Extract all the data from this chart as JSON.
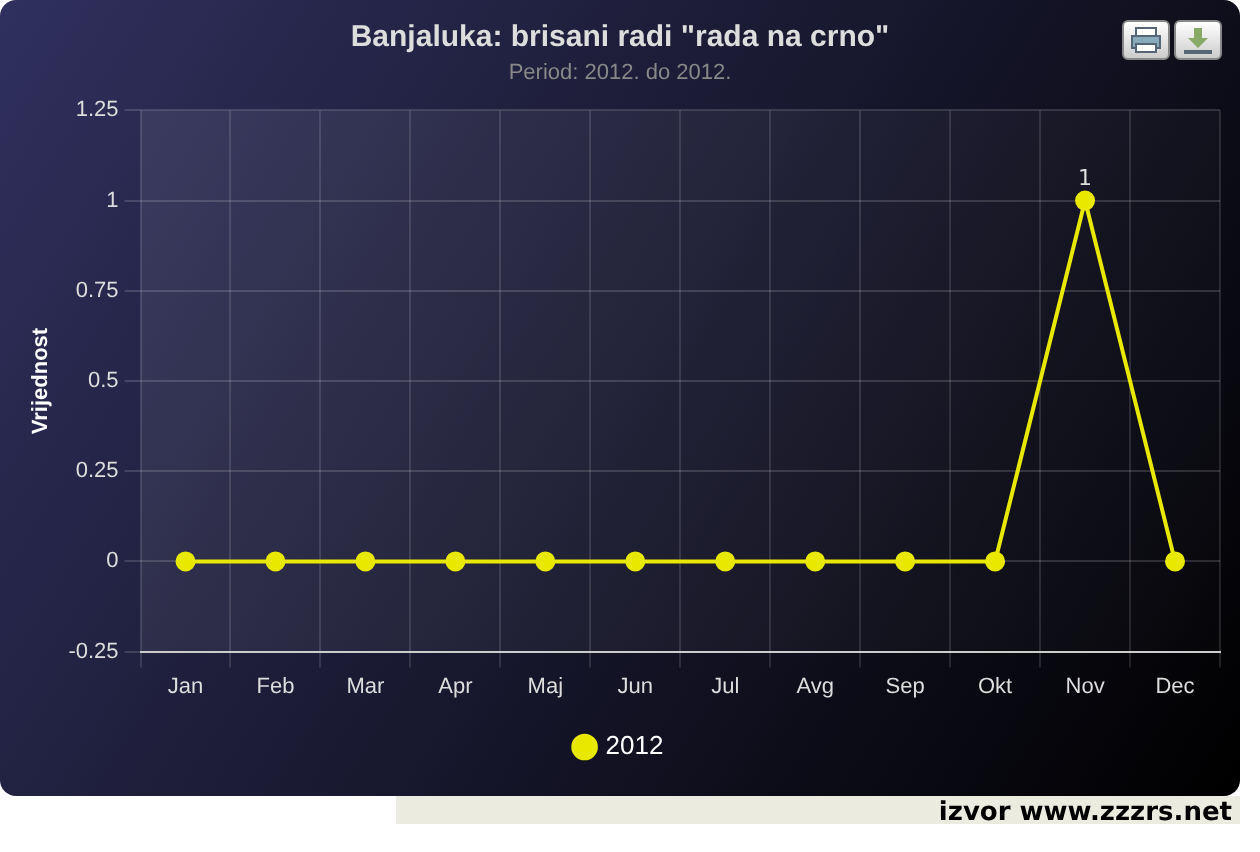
{
  "chart_data": {
    "type": "line",
    "title": "Banjaluka: brisani radi \"rada na crno\"",
    "subtitle": "Period: 2012. do 2012.",
    "ylabel": "Vrijednost",
    "categories": [
      "Jan",
      "Feb",
      "Mar",
      "Apr",
      "Maj",
      "Jun",
      "Jul",
      "Avg",
      "Sep",
      "Okt",
      "Nov",
      "Dec"
    ],
    "series": [
      {
        "name": "2012",
        "color": "#e8e800",
        "values": [
          0,
          0,
          0,
          0,
          0,
          0,
          0,
          0,
          0,
          0,
          1,
          0
        ],
        "value_labels": [
          null,
          null,
          null,
          null,
          null,
          null,
          null,
          null,
          null,
          null,
          "1",
          null
        ]
      }
    ],
    "ylim": [
      -0.25,
      1.25
    ],
    "yticks": [
      -0.25,
      0,
      0.25,
      0.5,
      0.75,
      1,
      1.25
    ],
    "grid": true,
    "legend": "bottom",
    "marker": "circle",
    "line_style": "solid",
    "annotations": [
      "izvor www.zzzrs.net"
    ]
  }
}
